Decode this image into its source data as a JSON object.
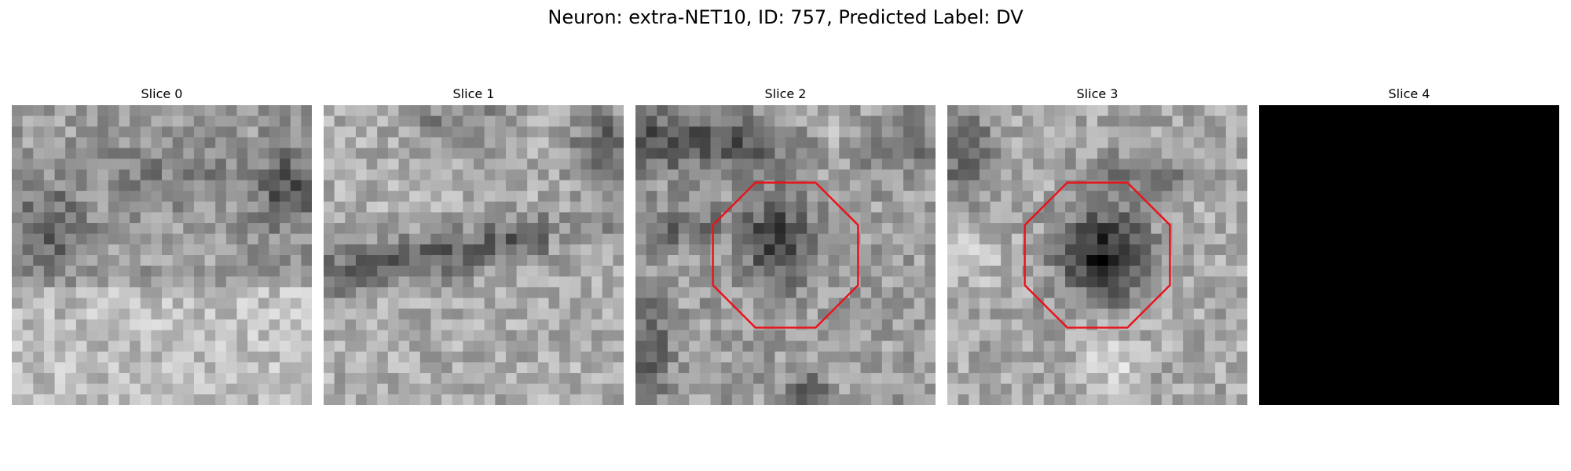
{
  "figure": {
    "title": "Neuron: extra-NET10, ID: 757, Predicted Label: DV"
  },
  "slices": [
    {
      "label": "Slice 0",
      "has_roi": false,
      "blank": false,
      "tone": "mid-light"
    },
    {
      "label": "Slice 1",
      "has_roi": false,
      "blank": false,
      "tone": "light-band"
    },
    {
      "label": "Slice 2",
      "has_roi": true,
      "blank": false,
      "tone": "dark-core"
    },
    {
      "label": "Slice 3",
      "has_roi": true,
      "blank": false,
      "tone": "dark-core"
    },
    {
      "label": "Slice 4",
      "has_roi": false,
      "blank": true,
      "tone": "black"
    }
  ],
  "colors": {
    "roi_outline": "#e8141c",
    "blank_slice": "#000000",
    "background": "#ffffff"
  }
}
